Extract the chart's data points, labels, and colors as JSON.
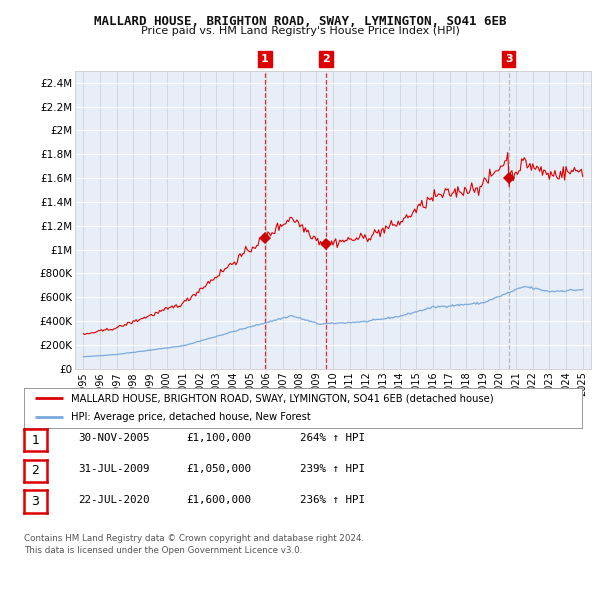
{
  "title": "MALLARD HOUSE, BRIGHTON ROAD, SWAY, LYMINGTON, SO41 6EB",
  "subtitle": "Price paid vs. HM Land Registry's House Price Index (HPI)",
  "legend_house": "MALLARD HOUSE, BRIGHTON ROAD, SWAY, LYMINGTON, SO41 6EB (detached house)",
  "legend_hpi": "HPI: Average price, detached house, New Forest",
  "footer": "Contains HM Land Registry data © Crown copyright and database right 2024.\nThis data is licensed under the Open Government Licence v3.0.",
  "transactions": [
    {
      "num": 1,
      "date": "30-NOV-2005",
      "price": "£1,100,000",
      "hpi": "264% ↑ HPI",
      "year": 2005.917
    },
    {
      "num": 2,
      "date": "31-JUL-2009",
      "price": "£1,050,000",
      "hpi": "239% ↑ HPI",
      "year": 2009.583
    },
    {
      "num": 3,
      "date": "22-JUL-2020",
      "price": "£1,600,000",
      "hpi": "236% ↑ HPI",
      "year": 2020.556
    }
  ],
  "sale_prices": [
    1100000,
    1050000,
    1600000
  ],
  "sale_years": [
    2005.917,
    2009.583,
    2020.556
  ],
  "ylim": [
    0,
    2500000
  ],
  "yticks": [
    0,
    200000,
    400000,
    600000,
    800000,
    1000000,
    1200000,
    1400000,
    1600000,
    1800000,
    2000000,
    2200000,
    2400000
  ],
  "ytick_labels": [
    "£0",
    "£200K",
    "£400K",
    "£600K",
    "£800K",
    "£1M",
    "£1.2M",
    "£1.4M",
    "£1.6M",
    "£1.8M",
    "£2M",
    "£2.2M",
    "£2.4M"
  ],
  "house_color": "#dd0000",
  "hpi_color": "#7aaadd",
  "vline_color_red": "#dd0000",
  "vline_color_gray": "#aaaaaa",
  "marker_color": "#cc0000",
  "bg_color": "#ffffff",
  "plot_bg": "#e8eef8"
}
